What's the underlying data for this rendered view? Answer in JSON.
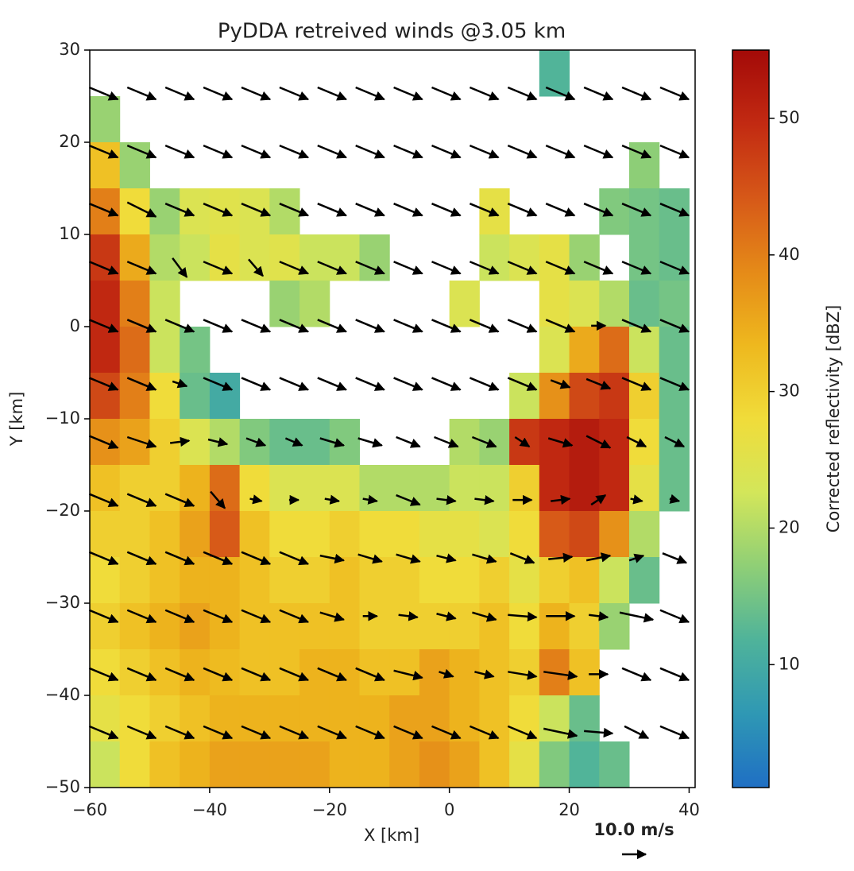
{
  "chart_data": {
    "type": "quiver-heatmap",
    "title": "PyDDA retreived winds @3.05 km",
    "x_label": "X [km]",
    "y_label": "Y [km]",
    "colorbar_label": "Corrected reflectivity [dBZ]",
    "xlim": [
      -60,
      41
    ],
    "ylim": [
      -50,
      30
    ],
    "xticks": [
      {
        "value": -60,
        "label": "−60"
      },
      {
        "value": -40,
        "label": "−40"
      },
      {
        "value": -20,
        "label": "−20"
      },
      0,
      20,
      40
    ],
    "yticks": [
      {
        "value": -50,
        "label": "−50"
      },
      {
        "value": -40,
        "label": "−40"
      },
      {
        "value": -30,
        "label": "−30"
      },
      {
        "value": -20,
        "label": "−20"
      },
      {
        "value": -10,
        "label": "−10"
      },
      0,
      10,
      20,
      30
    ],
    "clim": [
      1,
      55
    ],
    "cticks": [
      10,
      20,
      30,
      40,
      50
    ],
    "colormap": [
      "#1f6fc4",
      "#2f98b4",
      "#4fb39a",
      "#8fcf76",
      "#d3e65a",
      "#f0dc3a",
      "#eeb81e",
      "#e58a18",
      "#d65818",
      "#c22a12",
      "#a30a08"
    ],
    "x_edges": [
      -60,
      -55,
      -50,
      -45,
      -40,
      -35,
      -30,
      -25,
      -20,
      -15,
      -10,
      -5,
      0,
      5,
      10,
      15,
      20,
      25,
      30,
      35,
      40
    ],
    "y_edges": [
      30,
      25,
      20,
      15,
      10,
      5,
      0,
      -5,
      -10,
      -15,
      -20,
      -25,
      -30,
      -35,
      -40,
      -45,
      -50
    ],
    "reflectivity": [
      [
        null,
        null,
        null,
        null,
        null,
        null,
        null,
        null,
        null,
        null,
        null,
        null,
        null,
        null,
        null,
        12,
        null,
        null,
        null,
        null
      ],
      [
        18,
        null,
        null,
        null,
        null,
        null,
        null,
        null,
        null,
        null,
        null,
        null,
        null,
        null,
        null,
        null,
        null,
        null,
        null,
        null
      ],
      [
        32,
        18,
        null,
        null,
        null,
        null,
        null,
        null,
        null,
        null,
        null,
        null,
        null,
        null,
        null,
        null,
        null,
        null,
        17,
        null
      ],
      [
        40,
        28,
        18,
        24,
        25,
        24,
        20,
        null,
        null,
        null,
        null,
        null,
        null,
        26,
        null,
        null,
        null,
        16,
        15,
        14
      ],
      [
        48,
        35,
        20,
        22,
        26,
        24,
        25,
        22,
        22,
        18,
        null,
        null,
        null,
        22,
        24,
        26,
        18,
        null,
        15,
        14
      ],
      [
        50,
        40,
        22,
        null,
        null,
        null,
        18,
        20,
        null,
        null,
        null,
        null,
        24,
        null,
        null,
        26,
        24,
        20,
        14,
        15
      ],
      [
        50,
        42,
        22,
        15,
        null,
        null,
        null,
        null,
        null,
        null,
        null,
        null,
        null,
        null,
        null,
        24,
        35,
        42,
        22,
        14
      ],
      [
        46,
        40,
        28,
        14,
        10,
        null,
        null,
        null,
        null,
        null,
        null,
        null,
        null,
        null,
        22,
        38,
        46,
        48,
        30,
        14
      ],
      [
        38,
        36,
        30,
        24,
        20,
        16,
        14,
        14,
        16,
        null,
        null,
        null,
        20,
        18,
        48,
        50,
        52,
        50,
        28,
        14
      ],
      [
        32,
        30,
        30,
        34,
        42,
        28,
        24,
        24,
        24,
        20,
        20,
        20,
        22,
        22,
        30,
        50,
        52,
        50,
        26,
        14
      ],
      [
        30,
        30,
        32,
        36,
        44,
        32,
        28,
        28,
        30,
        28,
        28,
        26,
        26,
        24,
        28,
        44,
        46,
        38,
        20,
        null
      ],
      [
        28,
        30,
        32,
        34,
        34,
        32,
        30,
        30,
        32,
        30,
        30,
        28,
        28,
        30,
        26,
        30,
        32,
        22,
        14,
        null
      ],
      [
        30,
        32,
        34,
        36,
        34,
        32,
        32,
        32,
        32,
        30,
        30,
        30,
        30,
        32,
        28,
        34,
        30,
        18,
        null,
        null
      ],
      [
        28,
        30,
        32,
        34,
        33,
        32,
        32,
        34,
        34,
        32,
        32,
        36,
        34,
        32,
        30,
        40,
        32,
        null,
        null,
        null
      ],
      [
        26,
        28,
        30,
        32,
        34,
        34,
        34,
        34,
        34,
        34,
        36,
        36,
        34,
        32,
        28,
        22,
        14,
        null,
        null,
        null
      ],
      [
        22,
        28,
        32,
        34,
        36,
        36,
        36,
        36,
        34,
        34,
        36,
        38,
        36,
        32,
        26,
        16,
        12,
        14,
        null,
        null
      ]
    ],
    "quiver": {
      "x": [
        -57.7,
        -51.35,
        -45.0,
        -38.65,
        -32.3,
        -25.95,
        -19.6,
        -13.25,
        -6.9,
        -0.55,
        5.8,
        12.15,
        18.5,
        24.85,
        31.2,
        37.55
      ],
      "y": [
        25.3,
        19.0,
        12.7,
        6.4,
        0.1,
        -6.2,
        -12.5,
        -18.8,
        -25.1,
        -31.4,
        -37.7,
        -44.0
      ],
      "u": [
        [
          12,
          12,
          12,
          12,
          12,
          12,
          12,
          12,
          12,
          12,
          12,
          12,
          12,
          12,
          12,
          12
        ],
        [
          12,
          12,
          12,
          12,
          12,
          12,
          12,
          12,
          12,
          12,
          12,
          12,
          12,
          12,
          12,
          12
        ],
        [
          12,
          12,
          12,
          12,
          12,
          12,
          12,
          12,
          12,
          12,
          12,
          12,
          12,
          12,
          12,
          12
        ],
        [
          12,
          12,
          6,
          12,
          6,
          12,
          12,
          12,
          12,
          12,
          12,
          12,
          12,
          12,
          12,
          12
        ],
        [
          12,
          12,
          12,
          12,
          12,
          12,
          12,
          12,
          12,
          12,
          12,
          12,
          12,
          6,
          12,
          12
        ],
        [
          12,
          12,
          6,
          12,
          12,
          12,
          12,
          12,
          12,
          12,
          12,
          12,
          8,
          10,
          12,
          12
        ],
        [
          12,
          12,
          8,
          8,
          8,
          7,
          10,
          10,
          10,
          10,
          10,
          6,
          10,
          10,
          8,
          8
        ],
        [
          12,
          12,
          12,
          6,
          5,
          4,
          6,
          6,
          10,
          8,
          8,
          8,
          8,
          6,
          5,
          4
        ],
        [
          12,
          12,
          12,
          12,
          12,
          12,
          10,
          10,
          10,
          8,
          10,
          10,
          10,
          10,
          6,
          10
        ],
        [
          12,
          12,
          12,
          12,
          12,
          12,
          10,
          6,
          8,
          8,
          10,
          12,
          12,
          8,
          14,
          12
        ],
        [
          12,
          12,
          12,
          12,
          12,
          12,
          12,
          12,
          12,
          6,
          8,
          12,
          14,
          8,
          12,
          12
        ],
        [
          12,
          12,
          12,
          12,
          12,
          12,
          12,
          12,
          12,
          12,
          12,
          12,
          14,
          12,
          10,
          12
        ]
      ],
      "v": [
        [
          -5,
          -5,
          -5,
          -5,
          -5,
          -5,
          -5,
          -5,
          -5,
          -5,
          -5,
          -5,
          -5,
          -5,
          -5,
          -5
        ],
        [
          -5,
          -5,
          -5,
          -5,
          -5,
          -5,
          -5,
          -5,
          -5,
          -5,
          -5,
          -5,
          -5,
          -5,
          -5,
          -5
        ],
        [
          -5,
          -6,
          -5,
          -5,
          -5,
          -5,
          -5,
          -5,
          -5,
          -5,
          -5,
          -5,
          -5,
          -5,
          -5,
          -5
        ],
        [
          -5,
          -5,
          -8,
          -5,
          -7,
          -5,
          -5,
          -5,
          -5,
          -5,
          -5,
          -5,
          -5,
          -5,
          -5,
          -5
        ],
        [
          -5,
          -5,
          -5,
          -5,
          -5,
          -5,
          -5,
          -5,
          -5,
          -5,
          -5,
          -5,
          -5,
          0,
          -5,
          -5
        ],
        [
          -5,
          -5,
          -2,
          -5,
          -5,
          -5,
          -5,
          -5,
          -5,
          -5,
          -5,
          -5,
          -3,
          -4,
          -5,
          -5
        ],
        [
          -5,
          -4,
          1,
          -2,
          -3,
          -3,
          -3,
          -3,
          -4,
          -4,
          -4,
          -4,
          -3,
          -5,
          -4,
          -4
        ],
        [
          -5,
          -5,
          -5,
          -7,
          -1,
          0,
          -1,
          -1,
          -4,
          -1,
          -1,
          0,
          1,
          4,
          -1,
          -1
        ],
        [
          -5,
          -5,
          -5,
          -5,
          -5,
          -5,
          -2,
          -3,
          -3,
          -2,
          -3,
          -4,
          1,
          2,
          2,
          -4
        ],
        [
          -5,
          -5,
          -5,
          -5,
          -5,
          -5,
          -3,
          0,
          -1,
          -2,
          -3,
          -1,
          0,
          -1,
          -3,
          -5
        ],
        [
          -5,
          -5,
          -5,
          -5,
          -5,
          -5,
          -5,
          -5,
          -3,
          -2,
          -2,
          -2,
          -2,
          0,
          -5,
          -5
        ],
        [
          -5,
          -5,
          -5,
          -5,
          -5,
          -5,
          -5,
          -5,
          -5,
          -5,
          -5,
          -5,
          -3,
          -1,
          -5,
          -5
        ]
      ],
      "key_label": "10.0 m/s",
      "key_value": 10
    }
  }
}
